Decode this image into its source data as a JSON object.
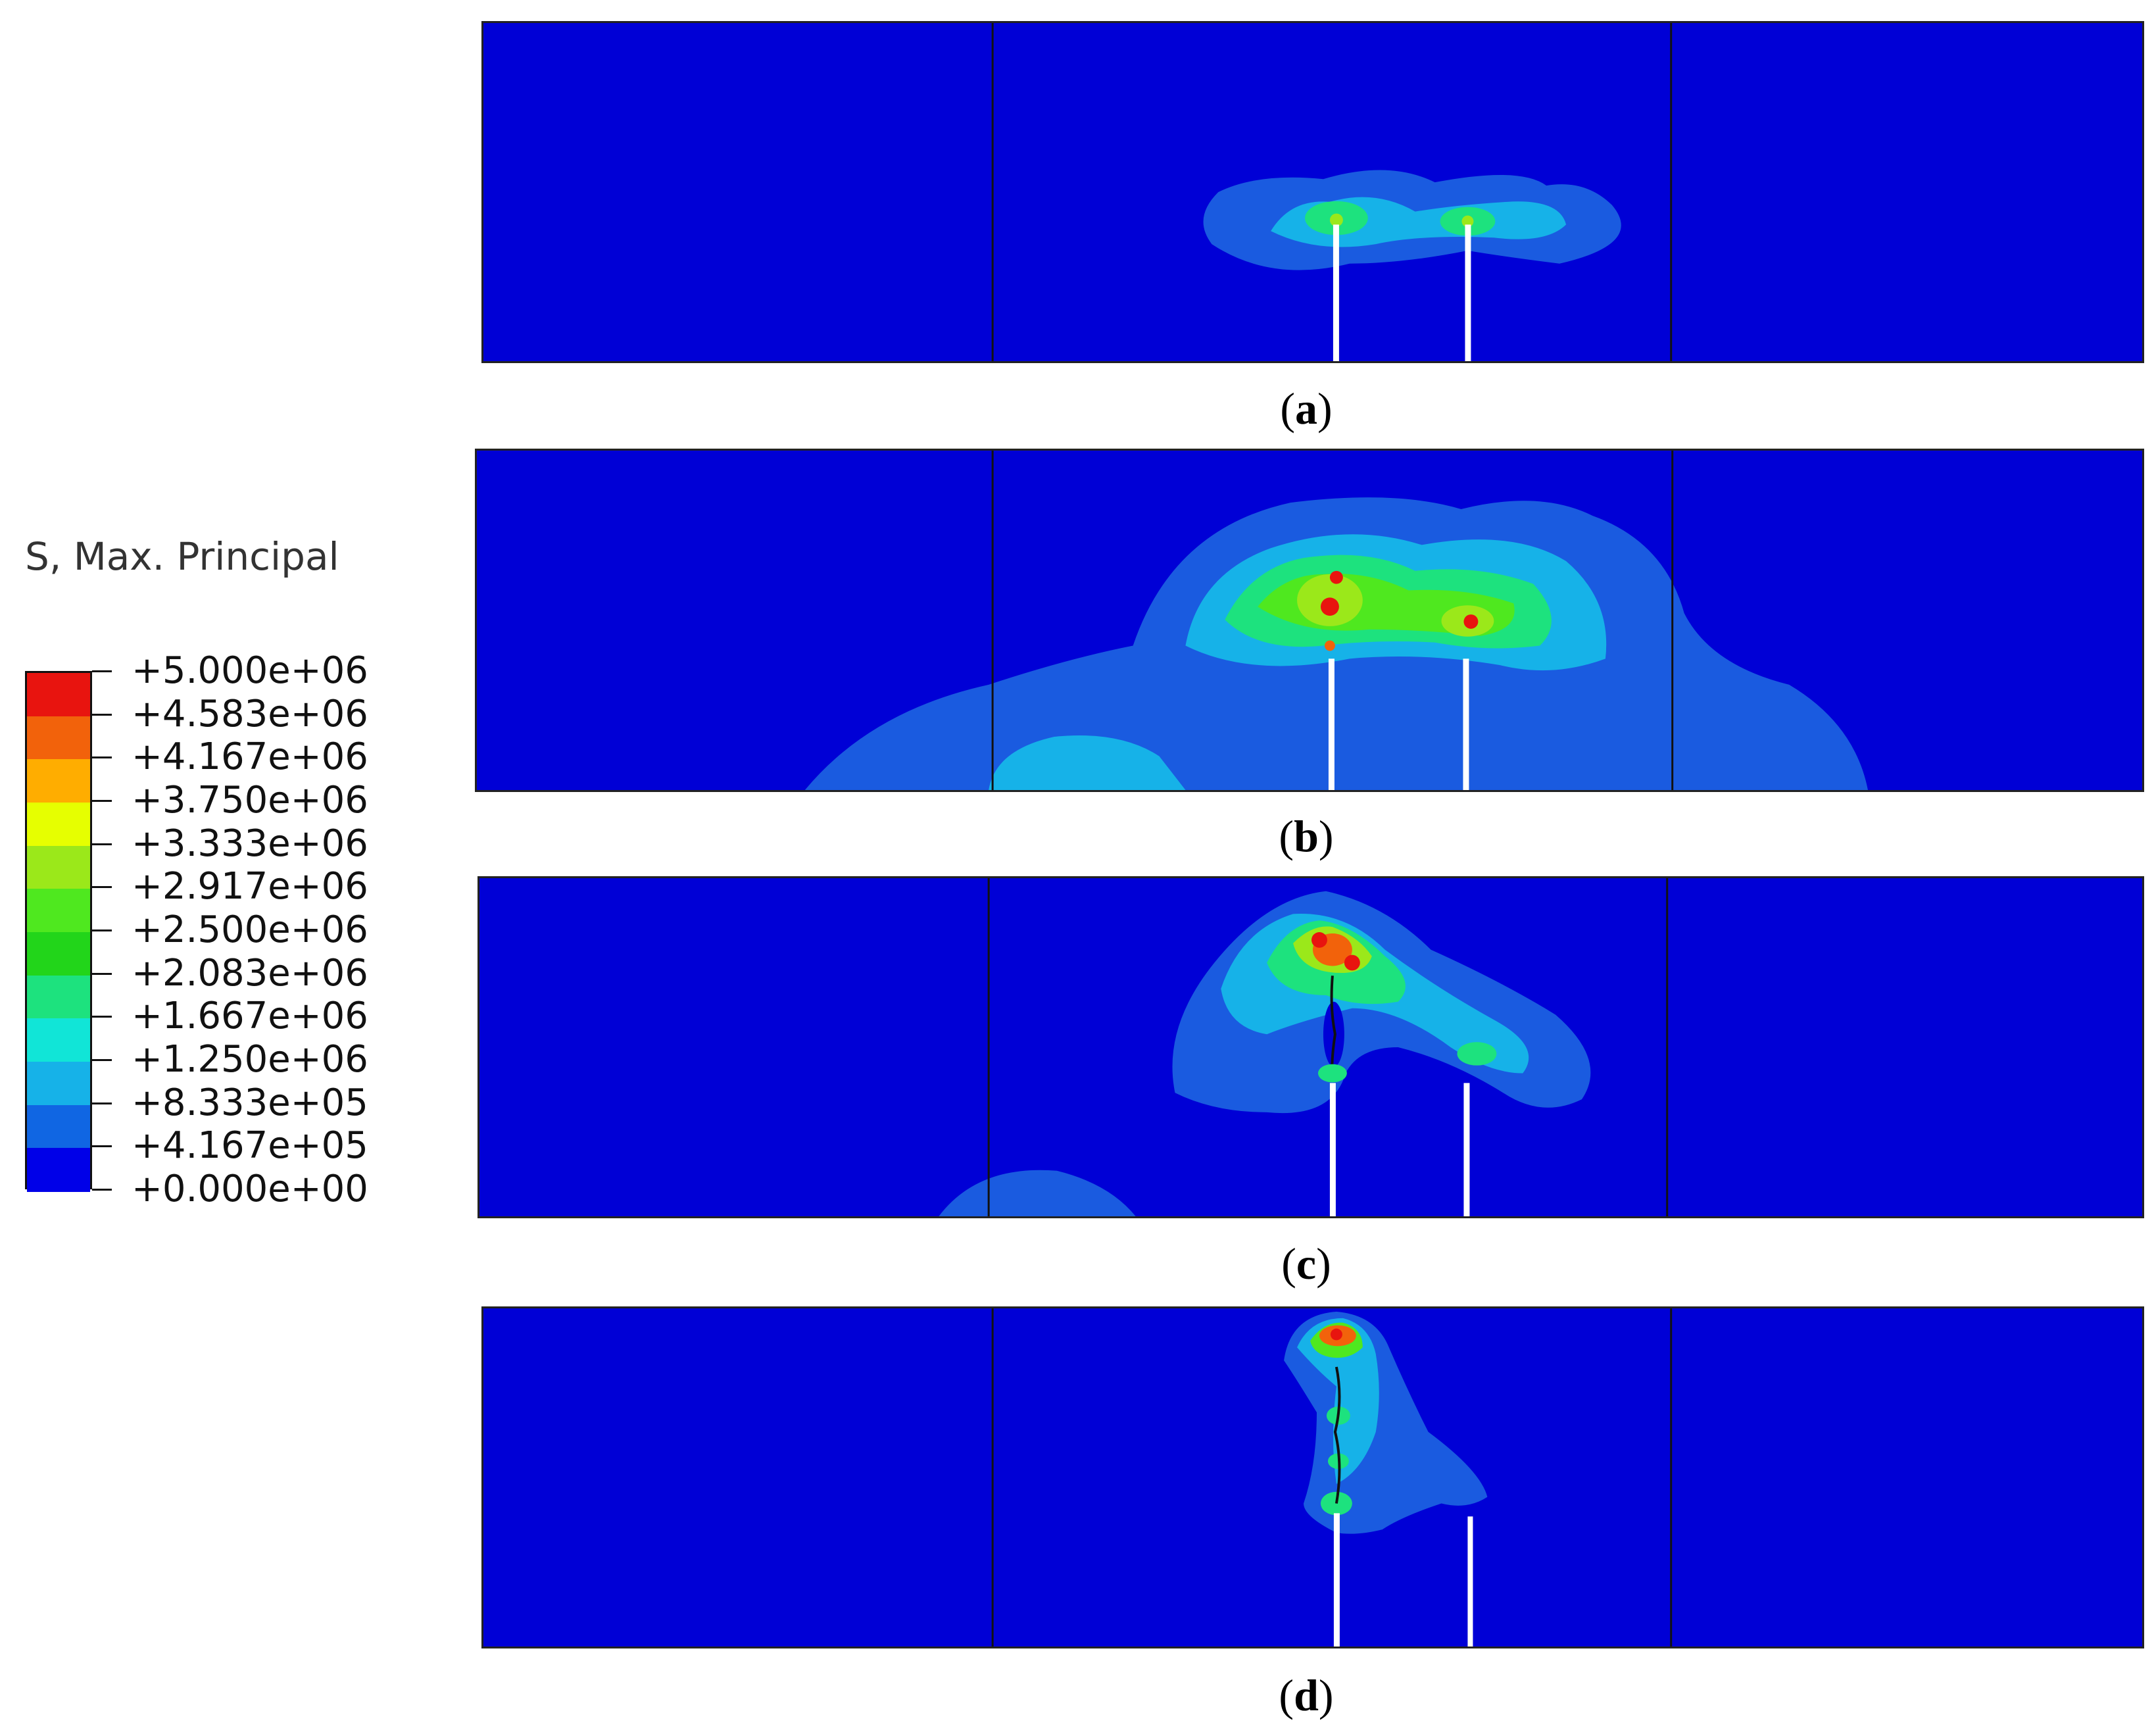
{
  "legend": {
    "title": "S, Max. Principal",
    "labels": [
      "+5.000e+06",
      "+4.583e+06",
      "+4.167e+06",
      "+3.750e+06",
      "+3.333e+06",
      "+2.917e+06",
      "+2.500e+06",
      "+2.083e+06",
      "+1.667e+06",
      "+1.250e+06",
      "+8.333e+05",
      "+4.167e+05",
      "+0.000e+00"
    ],
    "colors": [
      "#e8140f",
      "#f2620b",
      "#ffad00",
      "#e6ff00",
      "#9be81a",
      "#4fe81f",
      "#22d51a",
      "#1de27e",
      "#11e5d7",
      "#16b2e8",
      "#1066e3",
      "#0000e8"
    ]
  },
  "panels": [
    {
      "caption_open": "(",
      "caption_letter": "a",
      "caption_close": ")"
    },
    {
      "caption_open": "(",
      "caption_letter": "b",
      "caption_close": ")"
    },
    {
      "caption_open": "(",
      "caption_letter": "c",
      "caption_close": ")"
    },
    {
      "caption_open": "(",
      "caption_letter": "d",
      "caption_close": ")"
    }
  ],
  "colors": {
    "background_field": "#0000d6",
    "low_stress": "#1a5be0",
    "mid_low": "#16b2e8",
    "mid": "#1de27e",
    "green": "#4fe81f",
    "high": "#e8140f"
  }
}
